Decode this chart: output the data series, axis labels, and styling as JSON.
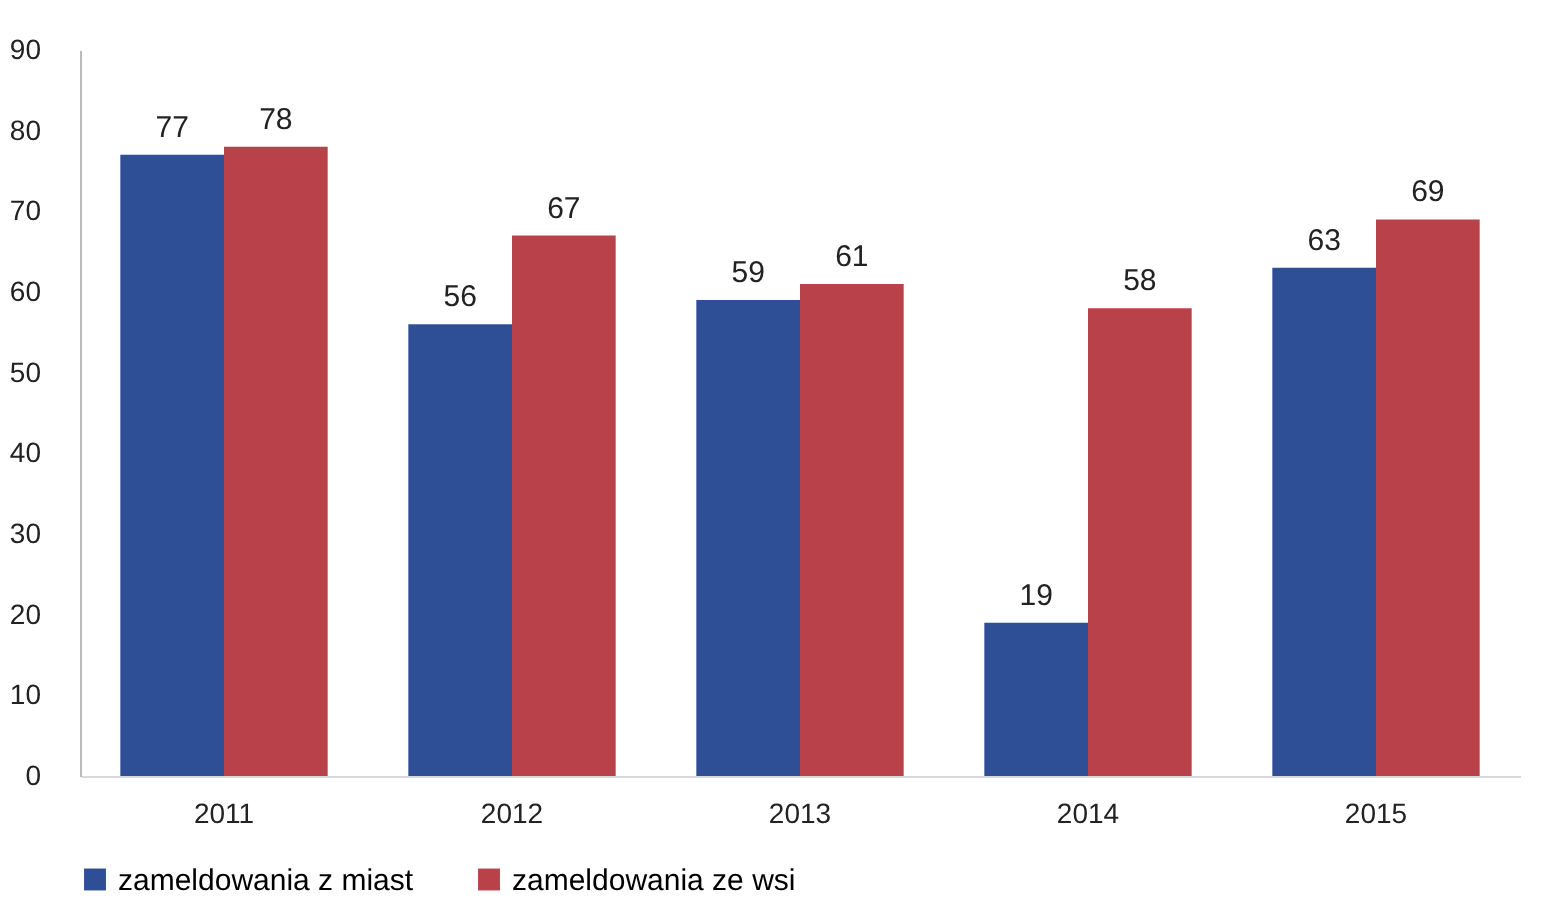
{
  "chart_data": {
    "type": "bar",
    "categories": [
      "2011",
      "2012",
      "2013",
      "2014",
      "2015"
    ],
    "series": [
      {
        "name": "zameldowania z miast",
        "color": "#2e4f96",
        "values": [
          77,
          56,
          59,
          19,
          63
        ]
      },
      {
        "name": "zameldowania ze wsi",
        "color": "#b8414a",
        "values": [
          78,
          67,
          61,
          58,
          69
        ]
      }
    ],
    "ylim": [
      0,
      90
    ],
    "yticks": [
      0,
      10,
      20,
      30,
      40,
      50,
      60,
      70,
      80,
      90
    ],
    "grid": false,
    "legend": "bottom",
    "data_labels": true
  }
}
